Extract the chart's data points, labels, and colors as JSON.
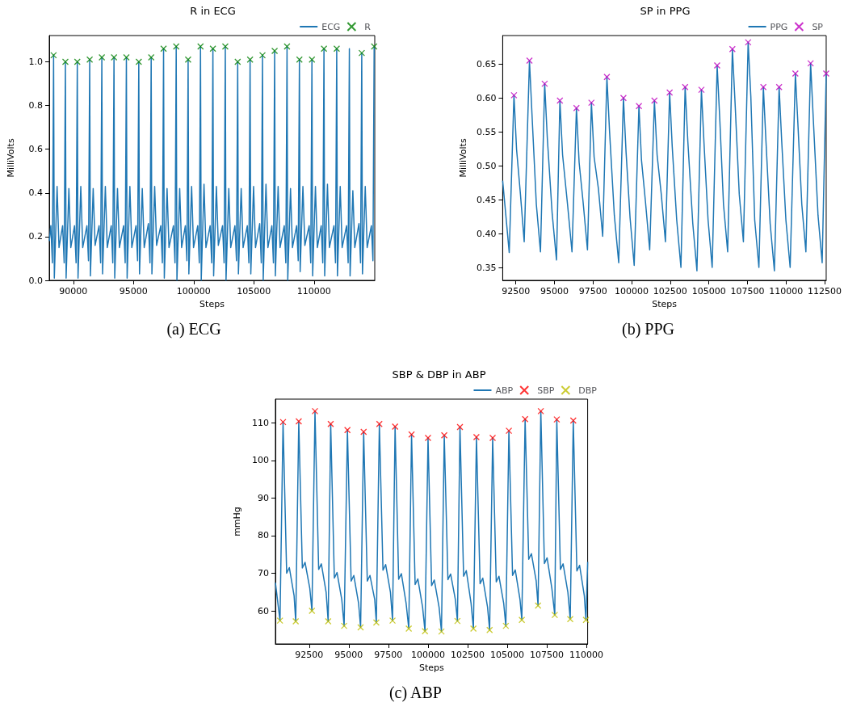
{
  "chart_data": [
    {
      "type": "line",
      "title": "R in ECG",
      "xlabel": "Steps",
      "ylabel": "MilliVolts",
      "annotations": [
        "(a) ECG"
      ],
      "xlim": [
        88000,
        115050
      ],
      "ylim": [
        0,
        1.12
      ],
      "xticks": [
        90000,
        95000,
        100000,
        105000,
        110000
      ],
      "yticks": [
        {
          "value": 0,
          "label": "0.0"
        },
        0.2,
        0.4,
        0.6,
        0.8,
        {
          "value": 1,
          "label": "1.0"
        }
      ],
      "legend": "top right",
      "series": [
        {
          "name": "ECG",
          "type": "line",
          "color": "#1f77b4",
          "x": [
            88000,
            88130,
            88260,
            88360,
            88420,
            88650,
            88810,
            89110,
            89240,
            89340,
            89400,
            89630,
            89790,
            90100,
            90230,
            90330,
            90390,
            90620,
            90780,
            91130,
            91260,
            91360,
            91420,
            91650,
            91810,
            92140,
            92270,
            92370,
            92430,
            92660,
            92820,
            93150,
            93280,
            93380,
            93440,
            93670,
            93830,
            94180,
            94310,
            94410,
            94470,
            94700,
            94860,
            95210,
            95340,
            95440,
            95500,
            95730,
            95890,
            96240,
            96370,
            96470,
            96530,
            96760,
            96920,
            97270,
            97400,
            97500,
            97560,
            97790,
            97950,
            98320,
            98450,
            98550,
            98610,
            98840,
            99000,
            99310,
            99440,
            99540,
            99600,
            99830,
            99990,
            100340,
            100470,
            100570,
            100630,
            100860,
            101020,
            101370,
            101500,
            101600,
            101660,
            101890,
            102050,
            102400,
            102530,
            102630,
            102690,
            102920,
            103080,
            103430,
            103560,
            103660,
            103720,
            103950,
            104110,
            104460,
            104590,
            104690,
            104750,
            104980,
            105140,
            105490,
            105620,
            105720,
            105780,
            106010,
            106170,
            106500,
            106630,
            106730,
            106790,
            107020,
            107180,
            107530,
            107660,
            107760,
            107820,
            108050,
            108210,
            108560,
            108690,
            108790,
            108850,
            109080,
            109240,
            109600,
            109730,
            109830,
            109890,
            110120,
            110280,
            110600,
            110730,
            110830,
            110890,
            111120,
            111280,
            111660,
            111790,
            111890,
            111950,
            112180,
            112340,
            112710,
            112840,
            112940,
            113000,
            113230,
            113390,
            113740,
            113870,
            113970,
            114030,
            114260,
            114420,
            114770,
            114900,
            115000
          ],
          "values": [
            0.18,
            0.25,
            0.08,
            1.03,
            0.01,
            0.43,
            0.15,
            0.25,
            0.08,
            1.0,
            0.01,
            0.42,
            0.15,
            0.25,
            0.08,
            1.0,
            0.01,
            0.43,
            0.15,
            0.25,
            0.09,
            1.01,
            0.02,
            0.42,
            0.16,
            0.25,
            0.08,
            1.02,
            0.03,
            0.43,
            0.15,
            0.25,
            0.08,
            1.02,
            0.01,
            0.42,
            0.15,
            0.25,
            0.08,
            1.02,
            0.01,
            0.43,
            0.15,
            0.25,
            0.09,
            1.0,
            0.03,
            0.42,
            0.15,
            0.26,
            0.08,
            1.02,
            0.03,
            0.43,
            0.16,
            0.25,
            0.08,
            1.06,
            0.01,
            0.42,
            0.15,
            0.25,
            0.08,
            1.07,
            0.0,
            0.42,
            0.15,
            0.25,
            0.09,
            1.01,
            0.03,
            0.43,
            0.15,
            0.25,
            0.08,
            1.07,
            0.0,
            0.44,
            0.15,
            0.25,
            0.08,
            1.06,
            0.02,
            0.43,
            0.16,
            0.25,
            0.08,
            1.07,
            0.0,
            0.42,
            0.15,
            0.25,
            0.09,
            1.0,
            0.03,
            0.42,
            0.15,
            0.25,
            0.08,
            1.01,
            0.03,
            0.43,
            0.15,
            0.26,
            0.08,
            1.03,
            0.0,
            0.44,
            0.15,
            0.25,
            0.08,
            1.05,
            0.02,
            0.43,
            0.15,
            0.25,
            0.08,
            1.07,
            0.0,
            0.42,
            0.15,
            0.25,
            0.09,
            1.01,
            0.04,
            0.43,
            0.16,
            0.25,
            0.08,
            1.01,
            0.02,
            0.43,
            0.15,
            0.25,
            0.08,
            1.06,
            0.02,
            0.44,
            0.15,
            0.25,
            0.08,
            1.06,
            0.02,
            0.43,
            0.15,
            0.25,
            0.08,
            1.06,
            0.02,
            0.41,
            0.15,
            0.26,
            0.08,
            1.04,
            0.03,
            0.43,
            0.15,
            0.25,
            0.09,
            1.07
          ]
        },
        {
          "name": "R",
          "type": "scatter",
          "marker": "cross",
          "color": "#008000",
          "x": [
            88360,
            89340,
            90330,
            91360,
            92370,
            93380,
            94410,
            95440,
            96470,
            97500,
            98550,
            99540,
            100570,
            101600,
            102630,
            103660,
            104690,
            105720,
            106730,
            107760,
            108790,
            109830,
            110830,
            111890,
            113970,
            115000
          ],
          "values": [
            1.03,
            1.0,
            1.0,
            1.01,
            1.02,
            1.02,
            1.02,
            1.0,
            1.02,
            1.06,
            1.07,
            1.01,
            1.07,
            1.06,
            1.07,
            1.0,
            1.01,
            1.03,
            1.05,
            1.07,
            1.01,
            1.01,
            1.06,
            1.06,
            1.04,
            1.07
          ]
        }
      ]
    },
    {
      "type": "line",
      "title": "SP in PPG",
      "xlabel": "Steps",
      "ylabel": "MilliVolts",
      "annotations": [
        "(b) PPG"
      ],
      "xlim": [
        91650,
        112600
      ],
      "ylim": [
        0.331,
        0.692
      ],
      "xticks": [
        92500,
        95000,
        97500,
        100000,
        102500,
        105000,
        107500,
        110000,
        112500
      ],
      "yticks": [
        0.35,
        {
          "value": 0.4,
          "label": "0.40"
        },
        0.45,
        {
          "value": 0.5,
          "label": "0.50"
        },
        0.55,
        {
          "value": 0.6,
          "label": "0.60"
        },
        0.65
      ],
      "legend": "top right",
      "series": [
        {
          "name": "PPG",
          "type": "line",
          "color": "#1f77b4",
          "x": [
            91650,
            92075,
            92381,
            92550,
            92800,
            93044,
            93384,
            93550,
            93830,
            94098,
            94370,
            94540,
            94850,
            95135,
            95356,
            95530,
            95850,
            96138,
            96427,
            96600,
            96860,
            97141,
            97396,
            97570,
            97850,
            98127,
            98399,
            98570,
            98880,
            99164,
            99470,
            99640,
            99900,
            100167,
            100473,
            100640,
            100900,
            101170,
            101476,
            101650,
            101920,
            102190,
            102462,
            102630,
            102920,
            103193,
            103465,
            103640,
            103960,
            104230,
            104519,
            104690,
            104950,
            105216,
            105539,
            105710,
            105950,
            106219,
            106525,
            106700,
            106970,
            107239,
            107545,
            107720,
            107970,
            108242,
            108531,
            108700,
            108970,
            109245,
            109551,
            109720,
            109990,
            110265,
            110605,
            110780,
            111020,
            111285,
            111591,
            111760,
            112070,
            112339,
            112600
          ],
          "values": [
            0.478,
            0.372,
            0.604,
            0.524,
            0.458,
            0.388,
            0.655,
            0.575,
            0.443,
            0.373,
            0.621,
            0.541,
            0.431,
            0.361,
            0.596,
            0.516,
            0.443,
            0.373,
            0.585,
            0.505,
            0.446,
            0.376,
            0.593,
            0.513,
            0.466,
            0.396,
            0.631,
            0.551,
            0.427,
            0.357,
            0.6,
            0.52,
            0.423,
            0.353,
            0.588,
            0.508,
            0.446,
            0.376,
            0.596,
            0.516,
            0.458,
            0.388,
            0.608,
            0.528,
            0.42,
            0.35,
            0.616,
            0.536,
            0.415,
            0.345,
            0.612,
            0.532,
            0.42,
            0.35,
            0.648,
            0.568,
            0.443,
            0.373,
            0.672,
            0.592,
            0.458,
            0.388,
            0.682,
            0.602,
            0.42,
            0.35,
            0.616,
            0.536,
            0.415,
            0.345,
            0.616,
            0.536,
            0.42,
            0.35,
            0.636,
            0.556,
            0.443,
            0.373,
            0.651,
            0.571,
            0.427,
            0.357,
            0.636
          ]
        },
        {
          "name": "SP",
          "type": "scatter",
          "marker": "cross",
          "color": "#bf00bf",
          "x": [
            92381,
            93384,
            94370,
            95356,
            96427,
            97396,
            98399,
            99470,
            100473,
            101476,
            102462,
            103465,
            104519,
            105539,
            106525,
            107545,
            108531,
            109551,
            110605,
            111591,
            112600
          ],
          "values": [
            0.604,
            0.655,
            0.621,
            0.596,
            0.585,
            0.593,
            0.631,
            0.6,
            0.588,
            0.596,
            0.608,
            0.616,
            0.612,
            0.648,
            0.672,
            0.682,
            0.616,
            0.616,
            0.636,
            0.651,
            0.636
          ]
        }
      ]
    },
    {
      "type": "line",
      "title": "SBP & DBP in ABP",
      "xlabel": "Steps",
      "ylabel": "mmHg",
      "annotations": [
        "(c) ABP"
      ],
      "xlim": [
        90370,
        110080
      ],
      "ylim": [
        51.2,
        116.3
      ],
      "xticks": [
        92500,
        95000,
        97500,
        100000,
        102500,
        105000,
        107500,
        110000
      ],
      "yticks": [
        60,
        70,
        80,
        90,
        100,
        110
      ],
      "legend": "top right",
      "series": [
        {
          "name": "ABP",
          "type": "line",
          "color": "#1f77b4",
          "x": [
            90370,
            90660,
            90852,
            91080,
            91250,
            91550,
            91652,
            91844,
            92070,
            92240,
            92540,
            92676,
            92868,
            93100,
            93270,
            93570,
            93700,
            93860,
            94090,
            94260,
            94560,
            94708,
            94916,
            95150,
            95320,
            95620,
            95748,
            95940,
            96170,
            96340,
            96640,
            96740,
            96932,
            97160,
            97330,
            97630,
            97764,
            97924,
            98150,
            98320,
            98620,
            98788,
            98964,
            99190,
            99360,
            99660,
            99812,
            100004,
            100230,
            100400,
            100700,
            100852,
            101028,
            101260,
            101430,
            101730,
            101860,
            102020,
            102250,
            102420,
            102720,
            102868,
            103060,
            103290,
            103460,
            103760,
            103892,
            104084,
            104310,
            104480,
            104780,
            104916,
            105108,
            105340,
            105510,
            105810,
            105924,
            106132,
            106360,
            106530,
            106830,
            106948,
            107124,
            107350,
            107520,
            107820,
            108004,
            108132,
            108360,
            108530,
            108830,
            108980,
            109172,
            109400,
            109570,
            109870,
            109972,
            110080
          ],
          "values": [
            67.5,
            57.4,
            110.2,
            70,
            71.5,
            64,
            57.2,
            110.4,
            71.4,
            72.9,
            66,
            60,
            113.1,
            71,
            72.5,
            65,
            57.2,
            109.7,
            68.7,
            70.2,
            63,
            56,
            108.1,
            67.9,
            69.4,
            62,
            55.6,
            107.6,
            67.9,
            69.4,
            63,
            56.9,
            109.7,
            70.8,
            72.3,
            65,
            57.4,
            109,
            68.4,
            69.9,
            62,
            55.3,
            106.9,
            67,
            68.5,
            61,
            54.6,
            106,
            66.7,
            68.2,
            61,
            54.5,
            106.7,
            68.3,
            69.8,
            63,
            57.3,
            108.9,
            69.2,
            70.7,
            62,
            55.3,
            106.2,
            67.2,
            68.7,
            61,
            54.9,
            106,
            67.7,
            69.2,
            62,
            56,
            107.9,
            69.4,
            70.9,
            63,
            57.6,
            111,
            73.7,
            75.2,
            68,
            61.4,
            113.1,
            72.6,
            74.1,
            66,
            58.9,
            110.9,
            71,
            72.5,
            65,
            57.8,
            110.6,
            70.6,
            72.1,
            64,
            57.6,
            73
          ]
        },
        {
          "name": "SBP",
          "type": "scatter",
          "marker": "cross",
          "color": "#ff0000",
          "x": [
            90852,
            91844,
            92868,
            93860,
            94916,
            95940,
            96932,
            97924,
            98964,
            100004,
            101028,
            102020,
            103060,
            104084,
            105108,
            106132,
            107124,
            108132,
            109172
          ],
          "values": [
            110.2,
            110.4,
            113.1,
            109.7,
            108.1,
            107.6,
            109.7,
            109,
            106.9,
            106,
            106.7,
            108.9,
            106.2,
            106,
            107.9,
            111,
            113.1,
            110.9,
            110.6
          ]
        },
        {
          "name": "DBP",
          "type": "scatter",
          "marker": "cross",
          "color": "#bfbf00",
          "x": [
            90660,
            91652,
            92676,
            93700,
            94708,
            95748,
            96740,
            97764,
            98788,
            99812,
            100852,
            101860,
            102868,
            103892,
            104916,
            105924,
            106948,
            108004,
            108980,
            109972
          ],
          "values": [
            57.4,
            57.2,
            60,
            57.2,
            56,
            55.6,
            56.9,
            57.4,
            55.3,
            54.6,
            54.5,
            57.3,
            55.3,
            54.9,
            56,
            57.6,
            61.4,
            58.9,
            57.8,
            57.6
          ]
        }
      ]
    }
  ]
}
